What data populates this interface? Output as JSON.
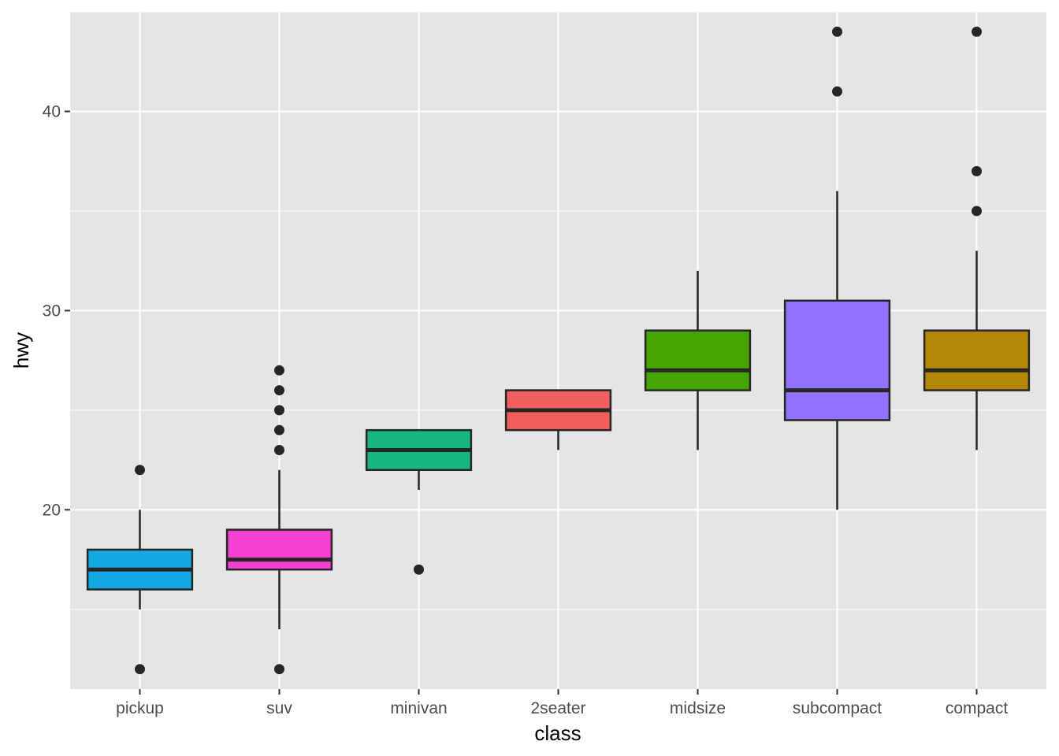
{
  "chart_data": {
    "type": "boxplot",
    "xlabel": "class",
    "ylabel": "hwy",
    "ylim": [
      11,
      45
    ],
    "yticks": [
      20,
      30,
      40
    ],
    "y_minor_ticks": [
      15,
      25,
      35,
      45
    ],
    "grid": true,
    "legend": "none",
    "panel_background": "#e5e5e5",
    "categories": [
      "pickup",
      "suv",
      "minivan",
      "2seater",
      "midsize",
      "subcompact",
      "compact"
    ],
    "boxes": [
      {
        "category": "pickup",
        "lower_whisker": 15,
        "q1": 16,
        "median": 17,
        "q3": 18,
        "upper_whisker": 20,
        "outliers": [
          12,
          22
        ],
        "fill": "#13a9e6"
      },
      {
        "category": "suv",
        "lower_whisker": 14,
        "q1": 17,
        "median": 17.5,
        "q3": 19,
        "upper_whisker": 22,
        "outliers": [
          12,
          23,
          24,
          25,
          26,
          27
        ],
        "fill": "#f740d2"
      },
      {
        "category": "minivan",
        "lower_whisker": 21,
        "q1": 22,
        "median": 23,
        "q3": 24,
        "upper_whisker": 24,
        "outliers": [
          17
        ],
        "fill": "#17b784"
      },
      {
        "category": "2seater",
        "lower_whisker": 23,
        "q1": 24,
        "median": 25,
        "q3": 26,
        "upper_whisker": 26,
        "outliers": [],
        "fill": "#f15e5d"
      },
      {
        "category": "midsize",
        "lower_whisker": 23,
        "q1": 26,
        "median": 27,
        "q3": 29,
        "upper_whisker": 32,
        "outliers": [],
        "fill": "#45a503"
      },
      {
        "category": "subcompact",
        "lower_whisker": 20,
        "q1": 24.5,
        "median": 26,
        "q3": 30.5,
        "upper_whisker": 36,
        "outliers": [
          41,
          44
        ],
        "fill": "#9370ff"
      },
      {
        "category": "compact",
        "lower_whisker": 23,
        "q1": 26,
        "median": 27,
        "q3": 29,
        "upper_whisker": 33,
        "outliers": [
          35,
          37,
          44
        ],
        "fill": "#b38707"
      }
    ]
  }
}
